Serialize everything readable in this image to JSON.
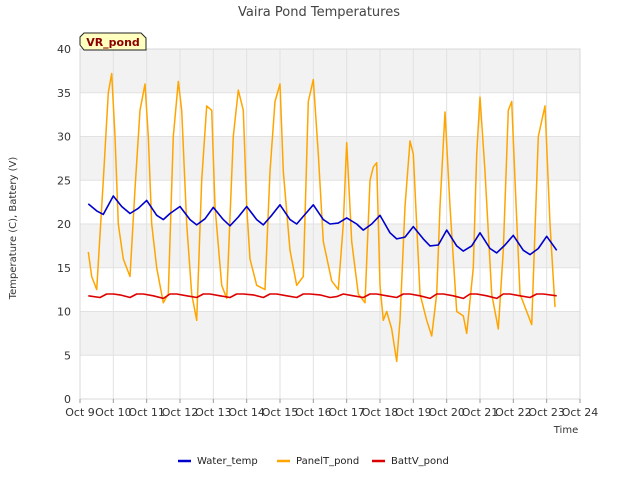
{
  "chart_data": {
    "type": "line",
    "title": "Vaira Pond Temperatures",
    "badge": "VR_pond",
    "xlabel": "Time",
    "ylabel": "Temperature (C), Battery (V)",
    "xlim": [
      9,
      24
    ],
    "ylim": [
      0,
      40
    ],
    "xticks": [
      {
        "v": 9,
        "label": "Oct 9"
      },
      {
        "v": 10,
        "label": "Oct 10"
      },
      {
        "v": 11,
        "label": "Oct 11"
      },
      {
        "v": 12,
        "label": "Oct 12"
      },
      {
        "v": 13,
        "label": "Oct 13"
      },
      {
        "v": 14,
        "label": "Oct 14"
      },
      {
        "v": 15,
        "label": "Oct 15"
      },
      {
        "v": 16,
        "label": "Oct 16"
      },
      {
        "v": 17,
        "label": "Oct 17"
      },
      {
        "v": 18,
        "label": "Oct 18"
      },
      {
        "v": 19,
        "label": "Oct 19"
      },
      {
        "v": 20,
        "label": "Oct 20"
      },
      {
        "v": 21,
        "label": "Oct 21"
      },
      {
        "v": 22,
        "label": "Oct 22"
      },
      {
        "v": 23,
        "label": "Oct 23"
      },
      {
        "v": 24,
        "label": "Oct 24"
      }
    ],
    "yticks": [
      0,
      5,
      10,
      15,
      20,
      25,
      30,
      35,
      40
    ],
    "grid": true,
    "legend_position": "bottom",
    "series": [
      {
        "name": "Water_temp",
        "color": "#0000cc",
        "x": [
          9.25,
          9.5,
          9.7,
          10.0,
          10.25,
          10.5,
          10.75,
          11.0,
          11.3,
          11.5,
          11.7,
          12.0,
          12.3,
          12.5,
          12.75,
          13.0,
          13.3,
          13.5,
          13.75,
          14.0,
          14.3,
          14.5,
          14.75,
          15.0,
          15.3,
          15.5,
          15.75,
          16.0,
          16.3,
          16.5,
          16.75,
          17.0,
          17.3,
          17.5,
          17.75,
          18.0,
          18.3,
          18.5,
          18.75,
          19.0,
          19.3,
          19.5,
          19.75,
          20.0,
          20.3,
          20.5,
          20.75,
          21.0,
          21.3,
          21.5,
          21.75,
          22.0,
          22.3,
          22.5,
          22.75,
          23.0,
          23.3
        ],
        "y": [
          22.3,
          21.5,
          21.1,
          23.2,
          22.0,
          21.2,
          21.8,
          22.7,
          21.0,
          20.5,
          21.2,
          22.0,
          20.5,
          19.9,
          20.6,
          21.9,
          20.5,
          19.8,
          20.8,
          22.0,
          20.5,
          19.9,
          21.0,
          22.2,
          20.5,
          20.0,
          21.1,
          22.2,
          20.5,
          20.0,
          20.1,
          20.7,
          20.0,
          19.3,
          20.0,
          21.0,
          19.0,
          18.3,
          18.5,
          19.7,
          18.3,
          17.5,
          17.6,
          19.3,
          17.5,
          16.9,
          17.5,
          19.0,
          17.2,
          16.7,
          17.6,
          18.7,
          17.0,
          16.5,
          17.2,
          18.6,
          17.0
        ]
      },
      {
        "name": "PanelT_pond",
        "color": "#ffa500",
        "x": [
          9.25,
          9.35,
          9.5,
          9.7,
          9.85,
          9.95,
          10.05,
          10.15,
          10.3,
          10.5,
          10.65,
          10.8,
          10.95,
          11.05,
          11.15,
          11.3,
          11.5,
          11.65,
          11.8,
          11.95,
          12.05,
          12.2,
          12.35,
          12.5,
          12.65,
          12.8,
          12.95,
          13.05,
          13.25,
          13.4,
          13.6,
          13.75,
          13.9,
          14.0,
          14.1,
          14.3,
          14.55,
          14.7,
          14.85,
          15.0,
          15.1,
          15.3,
          15.5,
          15.7,
          15.85,
          16.0,
          16.15,
          16.3,
          16.55,
          16.75,
          16.9,
          17.0,
          17.15,
          17.35,
          17.55,
          17.7,
          17.8,
          17.9,
          18.0,
          18.1,
          18.2,
          18.35,
          18.5,
          18.6,
          18.75,
          18.9,
          19.0,
          19.2,
          19.4,
          19.55,
          19.7,
          19.8,
          19.95,
          20.1,
          20.3,
          20.5,
          20.6,
          20.8,
          20.9,
          21.0,
          21.15,
          21.35,
          21.55,
          21.7,
          21.85,
          21.95,
          22.05,
          22.2,
          22.4,
          22.55,
          22.75,
          22.95,
          23.1,
          23.25
        ],
        "y": [
          16.8,
          14.0,
          12.5,
          25.0,
          35.0,
          37.2,
          30.0,
          20.0,
          16.0,
          14.0,
          24.0,
          33.0,
          36.0,
          30.0,
          20.0,
          15.0,
          11.0,
          12.0,
          30.0,
          36.3,
          33.0,
          20.0,
          12.0,
          9.0,
          25.0,
          33.5,
          33.0,
          22.0,
          13.0,
          11.5,
          30.0,
          35.3,
          33.0,
          22.0,
          16.0,
          13.0,
          12.5,
          26.0,
          34.0,
          36.0,
          26.0,
          17.0,
          13.0,
          14.0,
          34.0,
          36.5,
          28.0,
          18.0,
          13.5,
          12.5,
          20.0,
          29.3,
          18.0,
          12.0,
          11.0,
          25.0,
          26.5,
          27.0,
          13.0,
          9.0,
          10.0,
          8.0,
          4.3,
          9.0,
          22.0,
          29.5,
          28.0,
          12.0,
          9.0,
          7.2,
          12.0,
          22.0,
          32.8,
          22.0,
          10.0,
          9.5,
          7.5,
          15.0,
          28.0,
          34.5,
          26.0,
          12.0,
          8.0,
          17.0,
          33.0,
          34.0,
          25.0,
          12.0,
          10.0,
          8.5,
          30.0,
          33.5,
          20.0,
          10.5
        ]
      },
      {
        "name": "BattV_pond",
        "color": "#dd0000",
        "x": [
          9.25,
          9.6,
          9.8,
          10.0,
          10.2,
          10.5,
          10.7,
          10.9,
          11.2,
          11.5,
          11.7,
          11.9,
          12.2,
          12.5,
          12.7,
          12.9,
          13.2,
          13.5,
          13.7,
          13.9,
          14.2,
          14.5,
          14.7,
          14.9,
          15.2,
          15.5,
          15.7,
          15.9,
          16.2,
          16.5,
          16.7,
          16.9,
          17.2,
          17.5,
          17.7,
          17.9,
          18.2,
          18.5,
          18.7,
          18.9,
          19.2,
          19.5,
          19.7,
          19.9,
          20.2,
          20.5,
          20.7,
          20.9,
          21.2,
          21.5,
          21.7,
          21.9,
          22.2,
          22.5,
          22.7,
          22.9,
          23.3
        ],
        "y": [
          11.8,
          11.6,
          12.0,
          12.0,
          11.9,
          11.6,
          12.0,
          12.0,
          11.8,
          11.5,
          12.0,
          12.0,
          11.8,
          11.6,
          12.0,
          12.0,
          11.8,
          11.6,
          12.0,
          12.0,
          11.9,
          11.6,
          12.0,
          12.0,
          11.8,
          11.6,
          12.0,
          12.0,
          11.9,
          11.6,
          11.7,
          12.0,
          11.8,
          11.6,
          12.0,
          12.0,
          11.8,
          11.6,
          12.0,
          12.0,
          11.8,
          11.5,
          12.0,
          12.0,
          11.8,
          11.5,
          12.0,
          12.0,
          11.8,
          11.5,
          12.0,
          12.0,
          11.8,
          11.6,
          12.0,
          12.0,
          11.8
        ]
      }
    ]
  }
}
